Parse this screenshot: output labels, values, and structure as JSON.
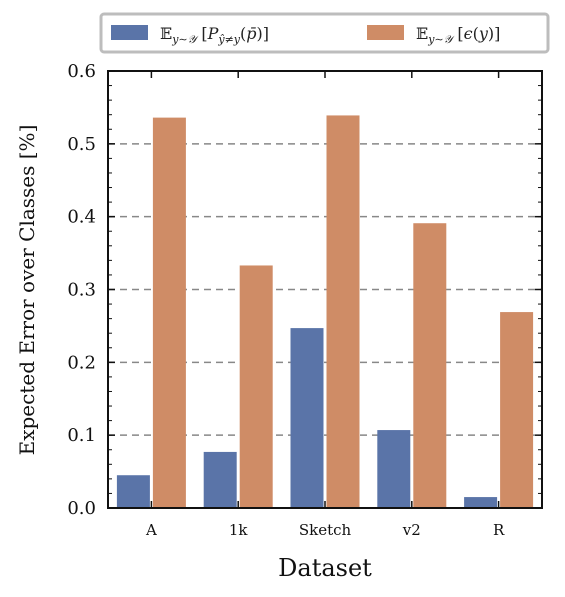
{
  "chart_data": {
    "type": "bar",
    "title": "",
    "xlabel": "Dataset",
    "ylabel": "Expected Error over Classes [%]",
    "categories": [
      "A",
      "1k",
      "Sketch",
      "v2",
      "R"
    ],
    "ylim": [
      0.0,
      0.6
    ],
    "yticks": [
      "0.0",
      "0.1",
      "0.2",
      "0.3",
      "0.4",
      "0.5",
      "0.6"
    ],
    "grid": "horizontal dashed",
    "legend_position": "top",
    "series": [
      {
        "name": "E_{y∼Y} [P_{ŷ≠y}(p̄)]",
        "color": "#5a74a8",
        "values": [
          0.045,
          0.077,
          0.247,
          0.107,
          0.015
        ]
      },
      {
        "name": "E_{y∼Y} [ε(y)]",
        "color": "#cf8c66",
        "values": [
          0.536,
          0.333,
          0.539,
          0.391,
          0.269
        ]
      }
    ]
  }
}
